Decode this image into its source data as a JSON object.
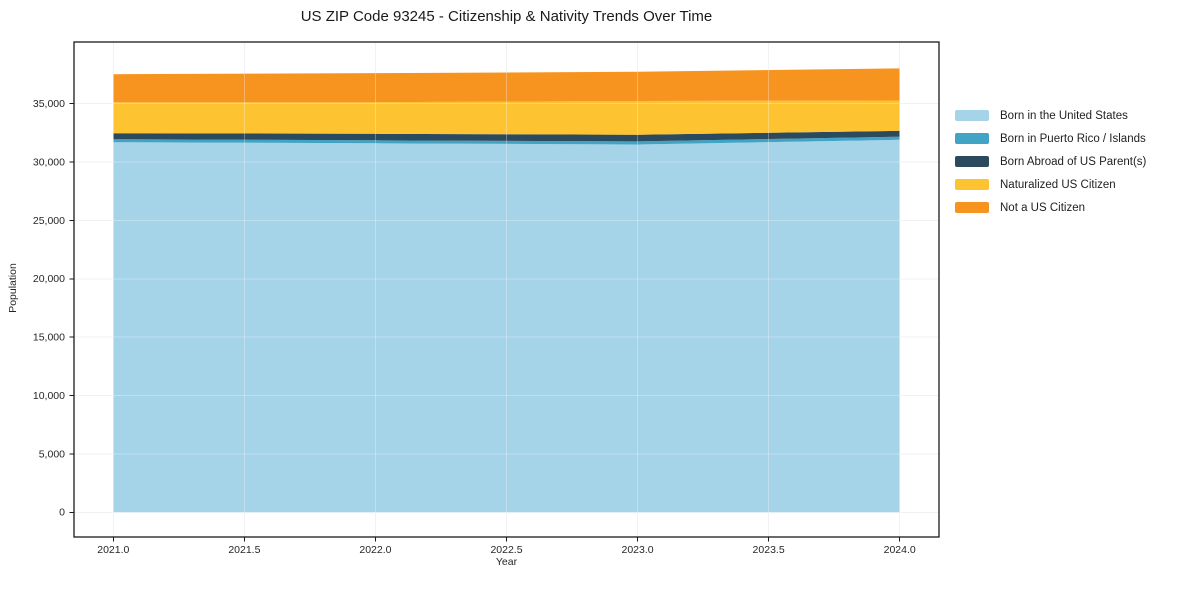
{
  "chart_data": {
    "type": "area",
    "stacked": true,
    "title": "US ZIP Code 93245 - Citizenship & Nativity Trends Over Time",
    "xlabel": "Year",
    "ylabel": "Population",
    "x": [
      2021,
      2022,
      2023,
      2024
    ],
    "series": [
      {
        "key": "born_us",
        "name": "Born in the United States",
        "color": "#a5d3e8",
        "values": [
          31700,
          31600,
          31500,
          31900
        ]
      },
      {
        "key": "born_pr",
        "name": "Born in Puerto Rico / Islands",
        "color": "#41a4c4",
        "values": [
          250,
          260,
          270,
          270
        ]
      },
      {
        "key": "born_abroad",
        "name": "Born Abroad of US Parent(s)",
        "color": "#2b4a5d",
        "values": [
          520,
          560,
          560,
          500
        ]
      },
      {
        "key": "naturalized",
        "name": "Naturalized US Citizen",
        "color": "#fdc330",
        "values": [
          2650,
          2700,
          2900,
          2600
        ]
      },
      {
        "key": "not_citizen",
        "name": "Not a US Citizen",
        "color": "#f79420",
        "values": [
          2400,
          2500,
          2500,
          2750
        ]
      }
    ],
    "xlim": [
      2020.85,
      2024.15
    ],
    "ylim": [
      -2120,
      40280
    ],
    "xticks": [
      2021.0,
      2021.5,
      2022.0,
      2022.5,
      2023.0,
      2023.5,
      2024.0
    ],
    "xtick_labels": [
      "2021.0",
      "2021.5",
      "2022.0",
      "2022.5",
      "2023.0",
      "2023.5",
      "2024.0"
    ],
    "yticks": [
      0,
      5000,
      10000,
      15000,
      20000,
      25000,
      30000,
      35000
    ],
    "ytick_labels": [
      "0",
      "5,000",
      "10,000",
      "15,000",
      "20,000",
      "25,000",
      "30,000",
      "35,000"
    ],
    "grid": true,
    "legend_position": "right-outside"
  },
  "style": {
    "grid_color": "#ececf1",
    "grid_overlay_color": "rgba(255,255,255,0.3)",
    "spine_color": "#1a1a1a",
    "tick_color": "#1a1a1a",
    "tick_label_color": "#262626",
    "background": "#ffffff"
  }
}
